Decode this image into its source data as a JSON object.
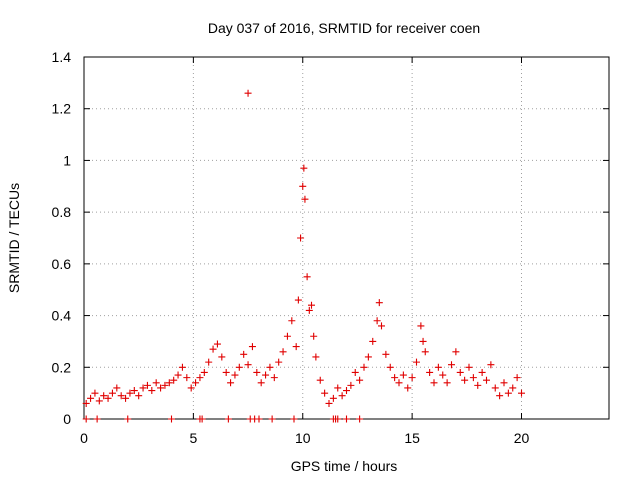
{
  "chart_data": {
    "type": "scatter",
    "title": "Day 037 of 2016, SRMTID for receiver coen",
    "xlabel": "GPS time / hours",
    "ylabel": "SRMTID / TECUs",
    "xlim": [
      0,
      24
    ],
    "ylim": [
      0,
      1.4
    ],
    "xticks": [
      0,
      5,
      10,
      15,
      20
    ],
    "xtick_labels": [
      "0",
      "5",
      "10",
      "15",
      "20"
    ],
    "yticks": [
      0,
      0.2,
      0.4,
      0.6,
      0.8,
      1.0,
      1.2,
      1.4
    ],
    "ytick_labels": [
      "0",
      "0.2",
      "0.4",
      "0.6",
      "0.8",
      "1",
      "1.2",
      "1.4"
    ],
    "grid": true,
    "marker": "plus",
    "color": "#e00000",
    "series": [
      {
        "name": "SRMTID",
        "x": [
          0.1,
          0.3,
          0.5,
          0.7,
          0.9,
          1.1,
          1.3,
          1.5,
          1.7,
          1.9,
          2.1,
          2.3,
          2.5,
          2.7,
          2.9,
          3.1,
          3.3,
          3.5,
          3.7,
          3.9,
          4.1,
          4.3,
          4.5,
          4.7,
          4.9,
          5.1,
          5.3,
          5.5,
          5.7,
          5.9,
          6.1,
          6.3,
          6.5,
          6.7,
          6.9,
          7.1,
          7.3,
          7.5,
          7.7,
          7.9,
          8.1,
          8.3,
          8.5,
          8.7,
          8.9,
          9.1,
          9.3,
          9.5,
          9.7,
          9.8,
          9.9,
          10.0,
          10.05,
          10.1,
          10.2,
          10.3,
          10.4,
          10.5,
          10.6,
          10.8,
          11.0,
          11.2,
          11.4,
          11.6,
          11.8,
          12.0,
          12.2,
          12.4,
          12.6,
          12.8,
          13.0,
          13.2,
          13.4,
          13.5,
          13.6,
          13.8,
          14.0,
          14.2,
          14.4,
          14.6,
          14.8,
          15.0,
          15.2,
          15.4,
          15.5,
          15.6,
          15.8,
          16.0,
          16.2,
          16.4,
          16.6,
          16.8,
          17.0,
          17.2,
          17.4,
          17.6,
          17.8,
          18.0,
          18.2,
          18.4,
          18.6,
          18.8,
          19.0,
          19.2,
          19.4,
          19.6,
          19.8,
          20.0,
          7.5,
          0.1,
          0.6,
          2.0,
          4.0,
          5.3,
          5.4,
          6.6,
          7.6,
          7.8,
          8.0,
          8.6,
          9.6,
          11.4,
          11.5,
          11.6,
          12.0,
          12.6
        ],
        "y": [
          0.06,
          0.08,
          0.1,
          0.07,
          0.09,
          0.08,
          0.1,
          0.12,
          0.09,
          0.08,
          0.1,
          0.11,
          0.09,
          0.12,
          0.13,
          0.11,
          0.14,
          0.12,
          0.13,
          0.14,
          0.15,
          0.17,
          0.2,
          0.16,
          0.12,
          0.14,
          0.16,
          0.18,
          0.22,
          0.27,
          0.29,
          0.24,
          0.18,
          0.14,
          0.17,
          0.2,
          0.25,
          0.21,
          0.28,
          0.18,
          0.14,
          0.17,
          0.2,
          0.16,
          0.22,
          0.26,
          0.32,
          0.38,
          0.28,
          0.46,
          0.7,
          0.9,
          0.97,
          0.85,
          0.55,
          0.42,
          0.44,
          0.32,
          0.24,
          0.15,
          0.1,
          0.06,
          0.08,
          0.12,
          0.09,
          0.11,
          0.13,
          0.18,
          0.15,
          0.2,
          0.24,
          0.3,
          0.38,
          0.45,
          0.36,
          0.25,
          0.2,
          0.16,
          0.14,
          0.17,
          0.12,
          0.16,
          0.22,
          0.36,
          0.3,
          0.26,
          0.18,
          0.14,
          0.2,
          0.17,
          0.14,
          0.21,
          0.26,
          0.18,
          0.15,
          0.2,
          0.16,
          0.13,
          0.18,
          0.15,
          0.21,
          0.12,
          0.09,
          0.14,
          0.1,
          0.12,
          0.16,
          0.1,
          1.26,
          0.0,
          0.0,
          0.0,
          0.0,
          0.0,
          0.0,
          0.0,
          0.0,
          0.0,
          0.0,
          0.0,
          0.0,
          0.0,
          0.0,
          0.0,
          0.0,
          0.0
        ]
      }
    ]
  }
}
